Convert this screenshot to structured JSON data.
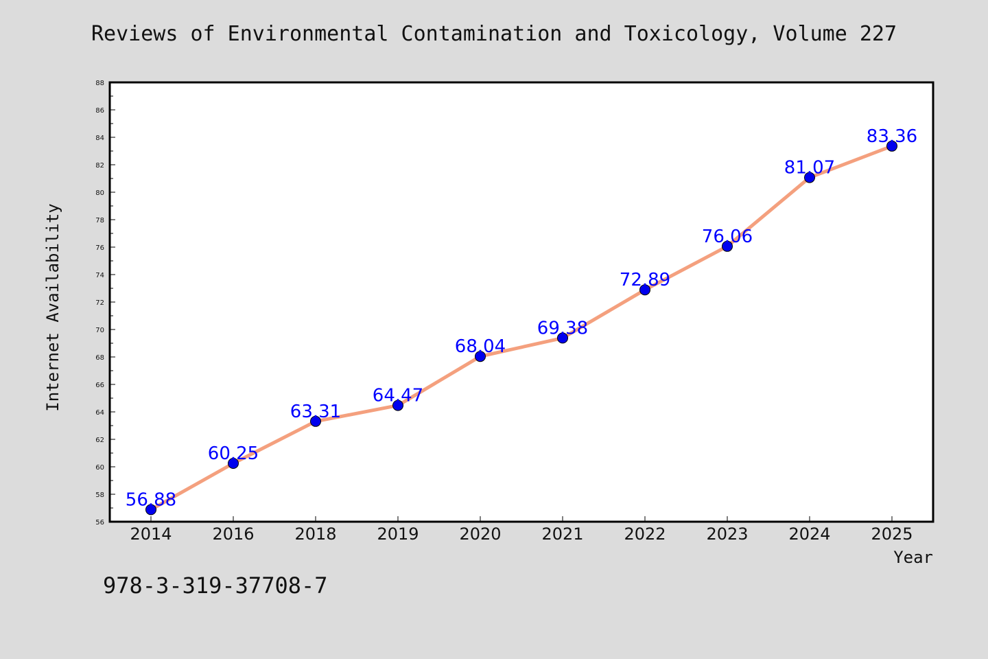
{
  "title": "Reviews of Environmental Contamination and Toxicology, Volume 227",
  "footer": "978-3-319-37708-7",
  "colors": {
    "line": "#f4a07e",
    "marker": "#0000ee",
    "label": "#0000ff",
    "background": "#dcdcdc",
    "plot": "#ffffff"
  },
  "chart_data": {
    "type": "line",
    "title": "Reviews of Environmental Contamination and Toxicology, Volume 227",
    "xlabel": "Year",
    "ylabel": "Internet Availability",
    "categories": [
      "2014",
      "2016",
      "2018",
      "2019",
      "2020",
      "2021",
      "2022",
      "2023",
      "2024",
      "2025"
    ],
    "series": [
      {
        "values": [
          56.88,
          60.25,
          63.31,
          64.47,
          68.04,
          69.38,
          72.89,
          76.06,
          81.07,
          83.36
        ]
      }
    ],
    "data_labels": [
      "56.88",
      "60.25",
      "63.31",
      "64.47",
      "68.04",
      "69.38",
      "72.89",
      "76.06",
      "81.07",
      "83.36"
    ],
    "ylim": [
      56,
      88
    ],
    "yticks": [
      "56",
      "58",
      "60",
      "62",
      "64",
      "66",
      "68",
      "70",
      "72",
      "74",
      "76",
      "78",
      "80",
      "82",
      "84",
      "86",
      "88"
    ],
    "grid": false,
    "legend": "none"
  }
}
